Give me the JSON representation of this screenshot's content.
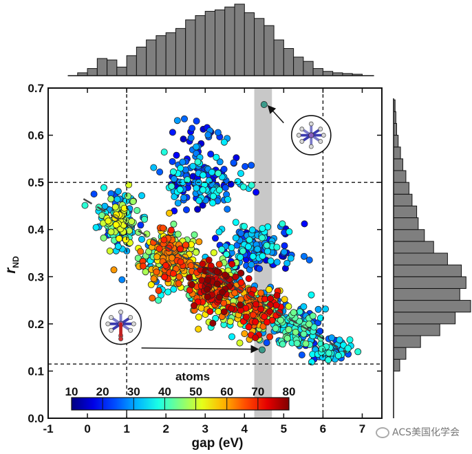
{
  "chart_data": {
    "type": "scatter",
    "xlabel": "gap (eV)",
    "ylabel_main": "r",
    "ylabel_sub": "ND",
    "xlim": [
      -1,
      7.5
    ],
    "ylim": [
      0,
      0.7
    ],
    "xticks": [
      "-1",
      "0",
      "1",
      "2",
      "3",
      "4",
      "5",
      "6",
      "7"
    ],
    "yticks": [
      "0.0",
      "0.1",
      "0.2",
      "0.3",
      "0.4",
      "0.5",
      "0.6",
      "0.7"
    ],
    "colorbar": {
      "title": "atoms",
      "ticks": [
        "10",
        "20",
        "30",
        "40",
        "50",
        "60",
        "70",
        "80"
      ],
      "range": [
        10,
        80
      ],
      "colormap": "jet"
    },
    "reference_lines": {
      "vertical_x": [
        1,
        6
      ],
      "horizontal_y": [
        0.5,
        0.115
      ]
    },
    "highlight_band": {
      "x": [
        4.25,
        4.7
      ],
      "color": "#c8c8c8"
    },
    "trend_line": {
      "x": [
        -0.1,
        6.6
      ],
      "y": [
        0.465,
        0.14
      ]
    },
    "annotated_points": [
      {
        "x": 4.5,
        "y": 0.665
      },
      {
        "x": 4.45,
        "y": 0.145
      }
    ],
    "top_histogram": {
      "bins_x": [
        -0.25,
        0.0,
        0.25,
        0.5,
        0.75,
        1.0,
        1.25,
        1.5,
        1.75,
        2.0,
        2.25,
        2.5,
        2.75,
        3.0,
        3.25,
        3.5,
        3.75,
        4.0,
        4.25,
        4.5,
        4.75,
        5.0,
        5.25,
        5.5,
        5.75,
        6.0,
        6.25,
        6.5,
        6.75
      ],
      "bin_width": 0.25,
      "counts": [
        4,
        10,
        24,
        22,
        12,
        28,
        40,
        50,
        56,
        60,
        66,
        78,
        84,
        90,
        92,
        96,
        100,
        88,
        80,
        70,
        50,
        38,
        26,
        20,
        10,
        6,
        4,
        3,
        2
      ]
    },
    "right_histogram": {
      "bins_y": [
        0.1,
        0.125,
        0.15,
        0.175,
        0.2,
        0.225,
        0.25,
        0.275,
        0.3,
        0.325,
        0.35,
        0.375,
        0.4,
        0.425,
        0.45,
        0.475,
        0.5,
        0.525,
        0.55,
        0.575,
        0.6,
        0.625,
        0.65
      ],
      "bin_width": 0.025,
      "counts": [
        8,
        16,
        35,
        60,
        80,
        100,
        86,
        94,
        88,
        70,
        52,
        40,
        32,
        30,
        24,
        20,
        16,
        12,
        9,
        6,
        4,
        3,
        2
      ]
    },
    "insets": [
      {
        "name": "small-molecule-inset",
        "x": 5.7,
        "y": 0.6,
        "r": 0.5
      },
      {
        "name": "large-molecule-inset",
        "x": 0.85,
        "y": 0.2,
        "r": 0.52
      }
    ],
    "series": [
      {
        "clusters": [
          {
            "x": 0.8,
            "y": 0.42,
            "sx": 0.45,
            "sy": 0.045,
            "n": 180,
            "atoms": [
              20,
              55
            ]
          },
          {
            "x": 2.0,
            "y": 0.34,
            "sx": 0.6,
            "sy": 0.05,
            "n": 300,
            "atoms": [
              25,
              70
            ]
          },
          {
            "x": 3.2,
            "y": 0.28,
            "sx": 0.6,
            "sy": 0.045,
            "n": 320,
            "atoms": [
              30,
              80
            ]
          },
          {
            "x": 4.3,
            "y": 0.23,
            "sx": 0.6,
            "sy": 0.04,
            "n": 260,
            "atoms": [
              25,
              75
            ]
          },
          {
            "x": 5.3,
            "y": 0.19,
            "sx": 0.55,
            "sy": 0.035,
            "n": 160,
            "atoms": [
              20,
              45
            ]
          },
          {
            "x": 6.2,
            "y": 0.14,
            "sx": 0.4,
            "sy": 0.025,
            "n": 60,
            "atoms": [
              20,
              40
            ]
          },
          {
            "x": 3.0,
            "y": 0.5,
            "sx": 0.9,
            "sy": 0.05,
            "n": 150,
            "atoms": [
              15,
              40
            ]
          },
          {
            "x": 4.3,
            "y": 0.36,
            "sx": 0.9,
            "sy": 0.05,
            "n": 140,
            "atoms": [
              15,
              40
            ]
          },
          {
            "x": 2.8,
            "y": 0.6,
            "sx": 0.6,
            "sy": 0.03,
            "n": 25,
            "atoms": [
              12,
              30
            ]
          }
        ]
      }
    ]
  },
  "watermark": "ACS美国化学会"
}
